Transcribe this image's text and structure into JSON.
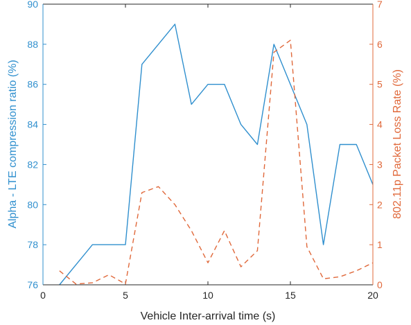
{
  "chart_data": {
    "type": "line",
    "xlabel": "Vehicle Inter-arrival time (s)",
    "ylabel_left": "Alpha - LTE compression ratio (%)",
    "ylabel_right": "802.11p Packet Loss Rate (%)",
    "xlim": [
      0,
      20
    ],
    "ylim_left": [
      76,
      90
    ],
    "ylim_right": [
      0,
      7
    ],
    "xticks": [
      0,
      5,
      10,
      15,
      20
    ],
    "yticks_left": [
      76,
      78,
      80,
      82,
      84,
      86,
      88,
      90
    ],
    "yticks_right": [
      0,
      1,
      2,
      3,
      4,
      5,
      6,
      7
    ],
    "grid": false,
    "colors": {
      "left": "#2f8fce",
      "right": "#e0683a",
      "axis": "#262626"
    },
    "series": [
      {
        "axis": "left",
        "style": "solid",
        "x": [
          1,
          3,
          4,
          5,
          6,
          8,
          9,
          10,
          11,
          12,
          13,
          14,
          16,
          17,
          18,
          19,
          20
        ],
        "y": [
          76,
          78,
          78,
          78,
          87,
          89,
          85,
          86,
          86,
          84,
          83,
          88,
          84,
          78,
          83,
          83,
          81
        ]
      },
      {
        "axis": "right",
        "style": "dashed",
        "x": [
          1,
          2,
          3,
          4,
          5,
          6,
          7,
          8,
          9,
          10,
          11,
          12,
          13,
          14,
          15,
          16,
          17,
          18,
          19,
          20
        ],
        "y": [
          0.35,
          0.02,
          0.05,
          0.25,
          0.02,
          2.3,
          2.45,
          2.0,
          1.35,
          0.55,
          1.35,
          0.45,
          0.85,
          5.8,
          6.1,
          0.95,
          0.15,
          0.2,
          0.35,
          0.55
        ]
      }
    ]
  }
}
